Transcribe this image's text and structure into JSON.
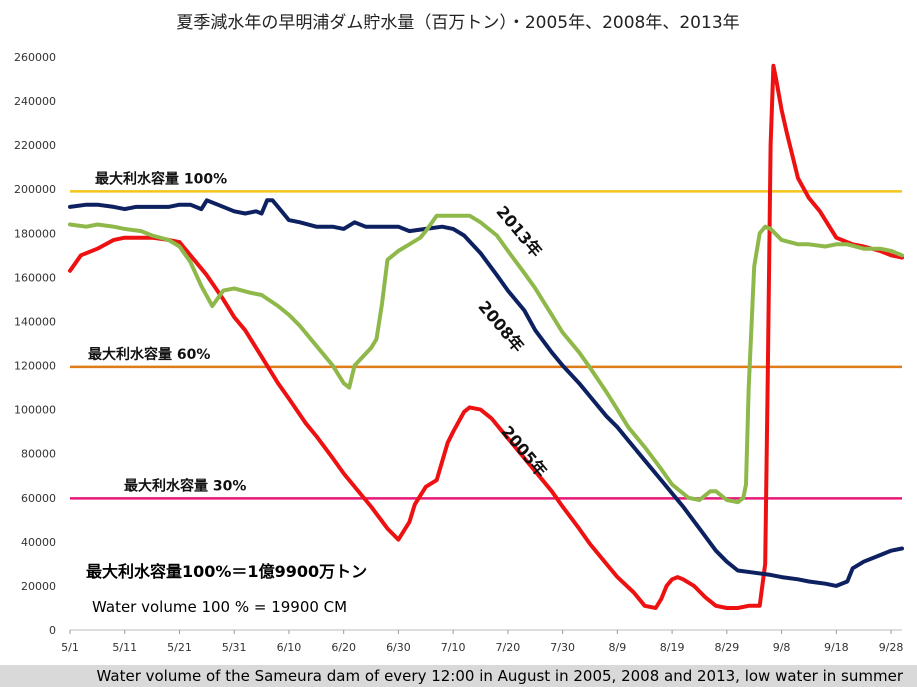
{
  "chart_data": {
    "type": "line",
    "title": "夏季減水年の早明浦ダム貯水量（百万トン）・2005年、2008年、2013年",
    "ylim": [
      0,
      260000
    ],
    "yticks": [
      "0",
      "20000",
      "40000",
      "60000",
      "80000",
      "100000",
      "120000",
      "140000",
      "160000",
      "180000",
      "200000",
      "220000",
      "240000",
      "260000"
    ],
    "xlim": [
      0,
      152
    ],
    "xticks": [
      {
        "x": 0,
        "label": "5/1"
      },
      {
        "x": 10,
        "label": "5/11"
      },
      {
        "x": 20,
        "label": "5/21"
      },
      {
        "x": 30,
        "label": "5/31"
      },
      {
        "x": 40,
        "label": "6/10"
      },
      {
        "x": 50,
        "label": "6/20"
      },
      {
        "x": 60,
        "label": "6/30"
      },
      {
        "x": 70,
        "label": "7/10"
      },
      {
        "x": 80,
        "label": "7/20"
      },
      {
        "x": 90,
        "label": "7/30"
      },
      {
        "x": 100,
        "label": "8/9"
      },
      {
        "x": 110,
        "label": "8/19"
      },
      {
        "x": 120,
        "label": "8/29"
      },
      {
        "x": 130,
        "label": "9/8"
      },
      {
        "x": 140,
        "label": "9/18"
      },
      {
        "x": 150,
        "label": "9/28"
      }
    ],
    "hlines": [
      {
        "label": "最大利水容量 100%",
        "value": 199000,
        "color": "#f5c518"
      },
      {
        "label": "最大利水容量 60%",
        "value": 119400,
        "color": "#e07b1a"
      },
      {
        "label": "最大利水容量 30%",
        "value": 59700,
        "color": "#e6197a"
      }
    ],
    "series": [
      {
        "name": "2005年",
        "color": "#ee1111",
        "x": [
          0,
          2,
          5,
          8,
          10,
          12,
          15,
          18,
          20,
          22,
          25,
          28,
          30,
          32,
          35,
          38,
          40,
          43,
          45,
          48,
          50,
          53,
          55,
          58,
          60,
          62,
          63,
          65,
          67,
          69,
          70,
          72,
          73,
          75,
          77,
          80,
          83,
          85,
          88,
          90,
          93,
          95,
          98,
          100,
          103,
          105,
          107,
          108,
          109,
          110,
          111,
          112,
          114,
          116,
          118,
          120,
          122,
          124,
          126,
          127,
          127.5,
          128,
          128.5,
          129,
          130,
          131,
          133,
          135,
          137,
          140,
          143,
          145,
          148,
          150,
          152
        ],
        "y": [
          163000,
          170000,
          173000,
          177000,
          178000,
          178000,
          178000,
          177000,
          176000,
          170000,
          161000,
          150000,
          142000,
          136000,
          124000,
          112000,
          105000,
          94000,
          88000,
          78000,
          71000,
          62000,
          56000,
          46000,
          41000,
          49000,
          57000,
          65000,
          68000,
          85000,
          90000,
          99000,
          101000,
          100000,
          96000,
          87000,
          78000,
          72000,
          63000,
          56000,
          46000,
          39000,
          30000,
          24000,
          17000,
          11000,
          10000,
          14000,
          20000,
          23000,
          24000,
          23000,
          20000,
          15000,
          11000,
          10000,
          10000,
          11000,
          11000,
          30000,
          120000,
          220000,
          256000,
          250000,
          236000,
          225000,
          205000,
          196000,
          190000,
          178000,
          175000,
          174000,
          172000,
          170000,
          169000
        ]
      },
      {
        "name": "2008年",
        "color": "#0d2060",
        "x": [
          0,
          3,
          5,
          8,
          10,
          12,
          15,
          18,
          20,
          22,
          24,
          25,
          27,
          30,
          32,
          34,
          35,
          36,
          37,
          38,
          40,
          42,
          45,
          48,
          50,
          52,
          54,
          57,
          60,
          62,
          65,
          68,
          70,
          72,
          75,
          78,
          80,
          83,
          85,
          88,
          90,
          93,
          95,
          98,
          100,
          102,
          105,
          108,
          110,
          112,
          115,
          118,
          120,
          122,
          125,
          128,
          130,
          133,
          135,
          138,
          140,
          142,
          143,
          145,
          148,
          150,
          152
        ],
        "y": [
          192000,
          193000,
          193000,
          192000,
          191000,
          192000,
          192000,
          192000,
          193000,
          193000,
          191000,
          195000,
          193000,
          190000,
          189000,
          190000,
          189000,
          195000,
          195000,
          192000,
          186000,
          185000,
          183000,
          183000,
          182000,
          185000,
          183000,
          183000,
          183000,
          181000,
          182000,
          183000,
          182000,
          179000,
          171000,
          161000,
          154000,
          145000,
          136000,
          126000,
          120000,
          112000,
          106000,
          97000,
          92000,
          86000,
          77000,
          68000,
          62000,
          56000,
          46000,
          36000,
          31000,
          27000,
          26000,
          25000,
          24000,
          23000,
          22000,
          21000,
          20000,
          22000,
          28000,
          31000,
          34000,
          36000,
          37000
        ]
      },
      {
        "name": "2013年",
        "color": "#8fb84a",
        "x": [
          0,
          3,
          5,
          8,
          10,
          13,
          15,
          18,
          20,
          22,
          24,
          26,
          28,
          30,
          33,
          35,
          38,
          40,
          42,
          45,
          48,
          50,
          51,
          52,
          55,
          56,
          57,
          58,
          60,
          62,
          64,
          65,
          67,
          70,
          73,
          75,
          78,
          80,
          83,
          85,
          88,
          90,
          93,
          95,
          98,
          100,
          102,
          105,
          108,
          110,
          113,
          115,
          117,
          118,
          120,
          122,
          123,
          123.5,
          124,
          125,
          126,
          127,
          128,
          130,
          133,
          135,
          138,
          140,
          142,
          145,
          148,
          150,
          152
        ],
        "y": [
          184000,
          183000,
          184000,
          183000,
          182000,
          181000,
          179000,
          177000,
          174000,
          167000,
          156000,
          147000,
          154000,
          155000,
          153000,
          152000,
          147000,
          143000,
          138000,
          129000,
          120000,
          112000,
          110000,
          120000,
          128000,
          132000,
          148000,
          168000,
          172000,
          175000,
          178000,
          181000,
          188000,
          188000,
          188000,
          185000,
          179000,
          172000,
          162000,
          155000,
          143000,
          135000,
          126000,
          119000,
          108000,
          100000,
          92000,
          83000,
          73000,
          66000,
          60000,
          59000,
          63000,
          63000,
          59000,
          58000,
          60000,
          66000,
          110000,
          165000,
          180000,
          183000,
          182000,
          177000,
          175000,
          175000,
          174000,
          175000,
          175000,
          173000,
          173000,
          172000,
          170000
        ]
      }
    ],
    "series_labels": [
      "2013年",
      "2008年",
      "2005年"
    ],
    "annotations": [
      "最大利水容量100%＝1億9900万トン",
      "Water volume 100 % = 19900 CM"
    ],
    "caption": "Water volume of the Sameura dam of every 12:00 in August in 2005, 2008 and 2013, low water in summer",
    "grid": false,
    "legend": "none"
  }
}
